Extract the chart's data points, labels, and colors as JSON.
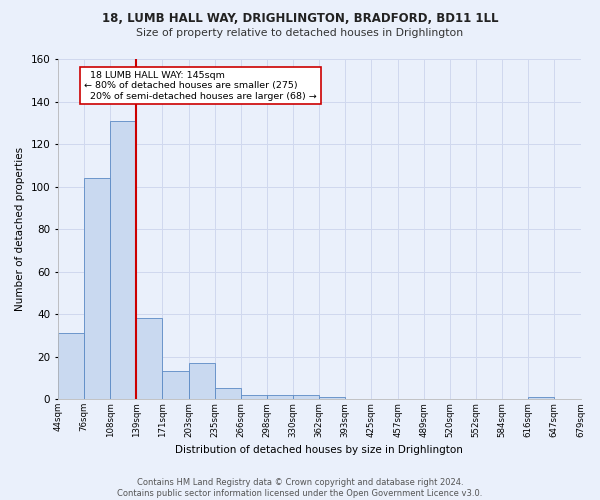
{
  "title": "18, LUMB HALL WAY, DRIGHLINGTON, BRADFORD, BD11 1LL",
  "subtitle": "Size of property relative to detached houses in Drighlington",
  "xlabel": "Distribution of detached houses by size in Drighlington",
  "ylabel": "Number of detached properties",
  "bar_values": [
    31,
    104,
    131,
    38,
    13,
    17,
    5,
    2,
    2,
    2,
    1,
    0,
    0,
    0,
    0,
    0,
    0,
    0,
    1,
    0
  ],
  "bin_labels": [
    "44sqm",
    "76sqm",
    "108sqm",
    "139sqm",
    "171sqm",
    "203sqm",
    "235sqm",
    "266sqm",
    "298sqm",
    "330sqm",
    "362sqm",
    "393sqm",
    "425sqm",
    "457sqm",
    "489sqm",
    "520sqm",
    "552sqm",
    "584sqm",
    "616sqm",
    "647sqm",
    "679sqm"
  ],
  "bar_color": "#c9d9f0",
  "bar_edge_color": "#5b8ac4",
  "grid_color": "#d0d8ee",
  "background_color": "#eaf0fb",
  "annotation_box_color": "#ffffff",
  "annotation_border_color": "#cc0000",
  "red_line_color": "#cc0000",
  "ylim": [
    0,
    160
  ],
  "yticks": [
    0,
    20,
    40,
    60,
    80,
    100,
    120,
    140,
    160
  ],
  "property_label": "18 LUMB HALL WAY: 145sqm",
  "smaller_pct": "80%",
  "smaller_count": 275,
  "larger_pct": "20%",
  "larger_count": 68,
  "red_line_bin_index": 3,
  "footer": "Contains HM Land Registry data © Crown copyright and database right 2024.\nContains public sector information licensed under the Open Government Licence v3.0."
}
